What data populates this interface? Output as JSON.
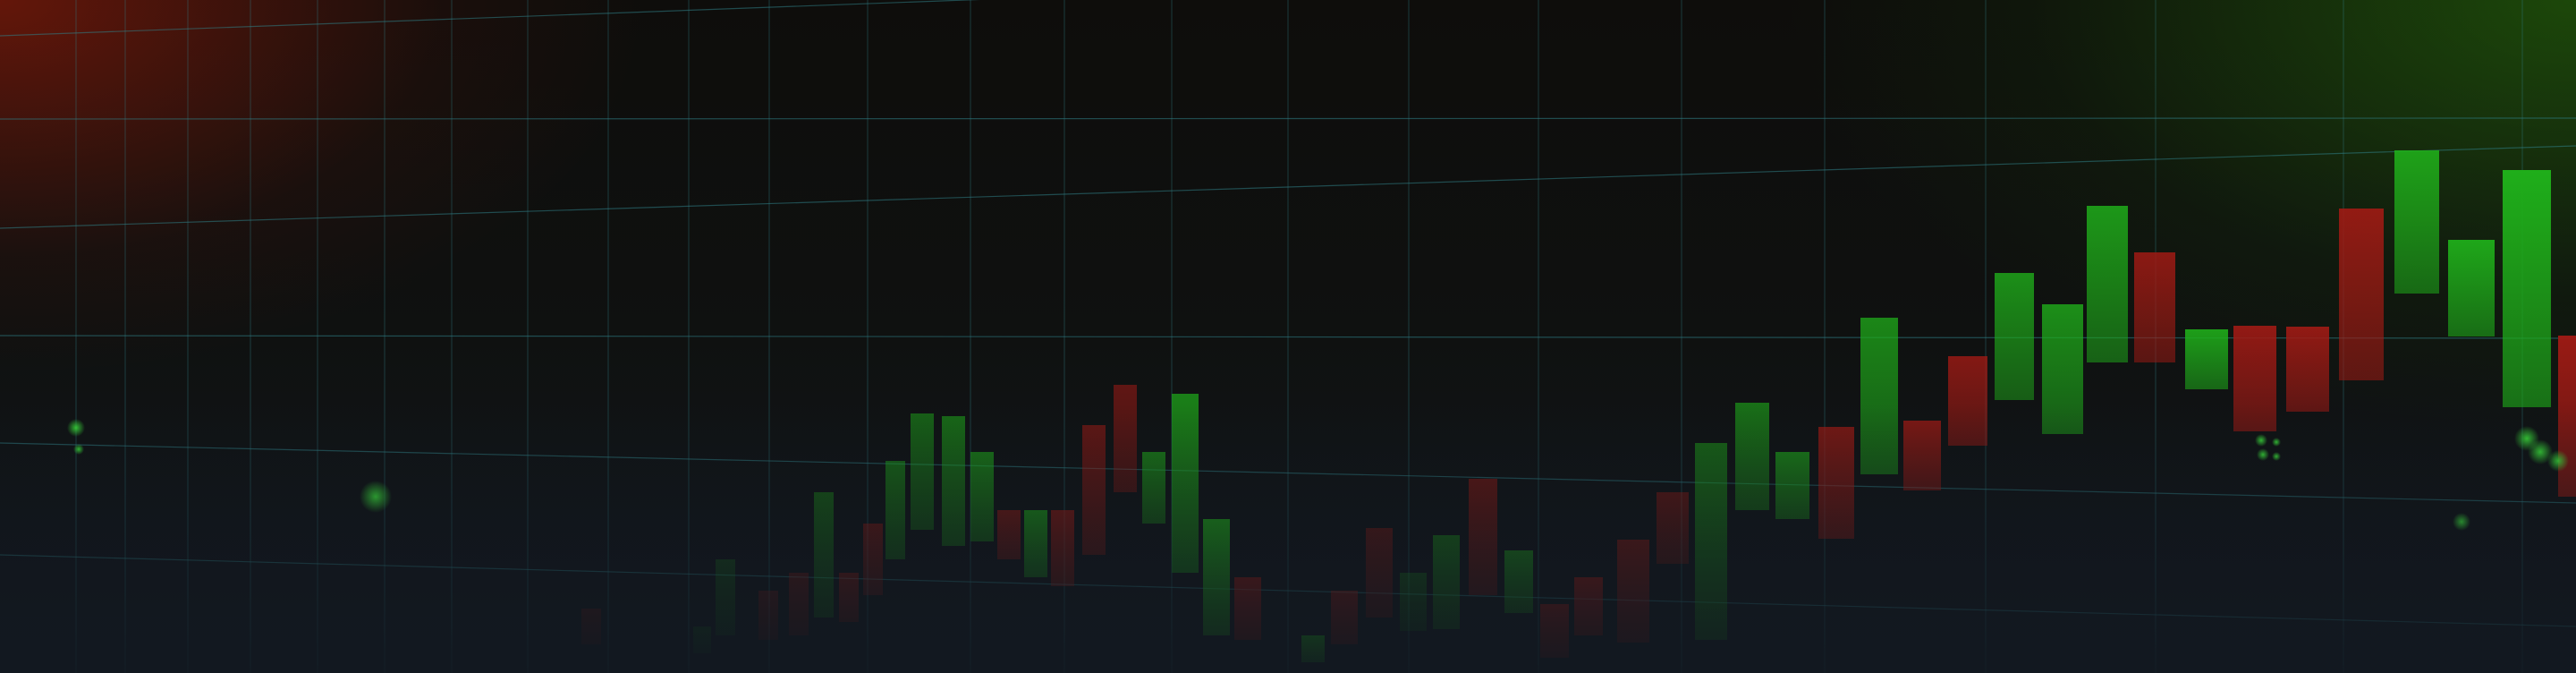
{
  "scene": {
    "description_label": "",
    "palette": {
      "bg_top_left": "#7a1a0a",
      "bg_top_right": "#1e5a0c",
      "bg_base": "#0f1110",
      "grid": "#2f7f86",
      "up": "#1fae1a",
      "down": "#a11a14"
    }
  },
  "candles": [
    {
      "dir": "down",
      "alpha": 0.25
    },
    {
      "dir": "up",
      "alpha": 0.2
    },
    {
      "dir": "up",
      "alpha": 0.25
    },
    {
      "dir": "down",
      "alpha": 0.3
    },
    {
      "dir": "down",
      "alpha": 0.35
    },
    {
      "dir": "up",
      "alpha": 0.4
    },
    {
      "dir": "down",
      "alpha": 0.45
    },
    {
      "dir": "down",
      "alpha": 0.45
    },
    {
      "dir": "up",
      "alpha": 0.5
    },
    {
      "dir": "up",
      "alpha": 0.5
    },
    {
      "dir": "up",
      "alpha": 0.55
    },
    {
      "dir": "up",
      "alpha": 0.6
    },
    {
      "dir": "down",
      "alpha": 0.55
    },
    {
      "dir": "up",
      "alpha": 0.65
    },
    {
      "dir": "down",
      "alpha": 0.6
    },
    {
      "dir": "down",
      "alpha": 0.55
    },
    {
      "dir": "down",
      "alpha": 0.55
    },
    {
      "dir": "up",
      "alpha": 0.6
    },
    {
      "dir": "up",
      "alpha": 0.7
    },
    {
      "dir": "up",
      "alpha": 0.75
    },
    {
      "dir": "down",
      "alpha": 0.6
    },
    {
      "dir": "up",
      "alpha": 0.7
    },
    {
      "dir": "down",
      "alpha": 0.5
    },
    {
      "dir": "down",
      "alpha": 0.4
    },
    {
      "dir": "up",
      "alpha": 0.3
    },
    {
      "dir": "up",
      "alpha": 0.45
    },
    {
      "dir": "down",
      "alpha": 0.5
    },
    {
      "dir": "up",
      "alpha": 0.55
    },
    {
      "dir": "down",
      "alpha": 0.55
    },
    {
      "dir": "down",
      "alpha": 0.6
    },
    {
      "dir": "down",
      "alpha": 0.5
    },
    {
      "dir": "down",
      "alpha": 0.45
    },
    {
      "dir": "up",
      "alpha": 0.5
    },
    {
      "dir": "up",
      "alpha": 0.6
    },
    {
      "dir": "up",
      "alpha": 0.65
    },
    {
      "dir": "down",
      "alpha": 0.7
    },
    {
      "dir": "up",
      "alpha": 0.75
    },
    {
      "dir": "down",
      "alpha": 0.75
    },
    {
      "dir": "down",
      "alpha": 0.8
    },
    {
      "dir": "up",
      "alpha": 0.8
    },
    {
      "dir": "up",
      "alpha": 0.8
    },
    {
      "dir": "up",
      "alpha": 0.85
    },
    {
      "dir": "down",
      "alpha": 0.85
    },
    {
      "dir": "up",
      "alpha": 0.9
    },
    {
      "dir": "down",
      "alpha": 0.9
    },
    {
      "dir": "down",
      "alpha": 0.9
    },
    {
      "dir": "down",
      "alpha": 0.9
    },
    {
      "dir": "up",
      "alpha": 0.9
    },
    {
      "dir": "up",
      "alpha": 0.95
    },
    {
      "dir": "up",
      "alpha": 1.0
    },
    {
      "dir": "down",
      "alpha": 0.95
    },
    {
      "dir": "up",
      "alpha": 1.0
    },
    {
      "dir": "down",
      "alpha": 0.9
    }
  ]
}
